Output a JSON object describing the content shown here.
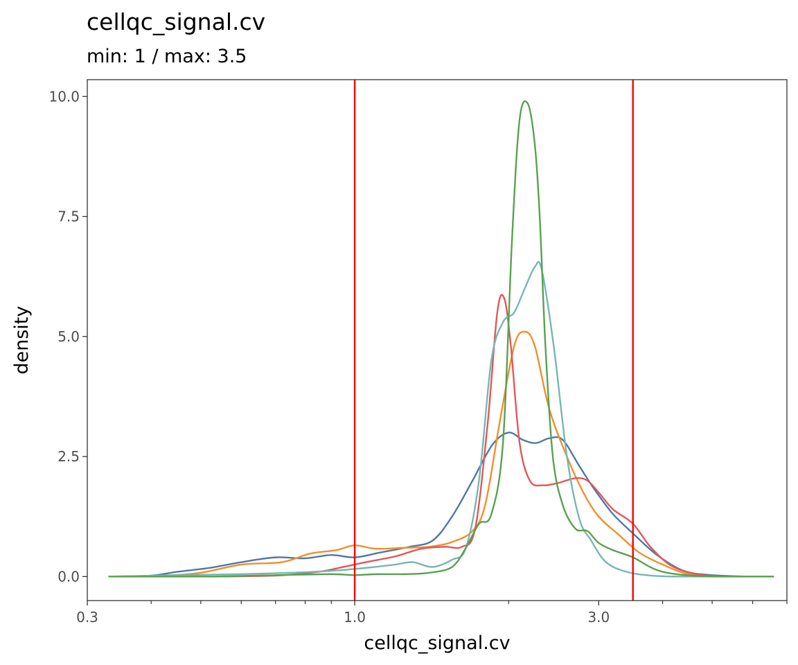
{
  "chart_data": {
    "type": "line",
    "title": "cellqc_signal.cv",
    "subtitle": "min: 1 / max: 3.5",
    "xlabel": "cellqc_signal.cv",
    "ylabel": "density",
    "x_scale": "log10",
    "xlim": [
      0.3,
      7.0
    ],
    "ylim": [
      -0.5,
      10.35
    ],
    "x_ticks": [
      {
        "value": 0.3,
        "label": "0.3"
      },
      {
        "value": 1.0,
        "label": "1.0"
      },
      {
        "value": 3.0,
        "label": "3.0"
      }
    ],
    "y_ticks": [
      {
        "value": 0.0,
        "label": "0.0"
      },
      {
        "value": 2.5,
        "label": "2.5"
      },
      {
        "value": 5.0,
        "label": "5.0"
      },
      {
        "value": 7.5,
        "label": "7.5"
      },
      {
        "value": 10.0,
        "label": "10.0"
      }
    ],
    "grid": false,
    "legend": "none",
    "vlines": [
      {
        "x": 1.0,
        "color": "#ff0000"
      },
      {
        "x": 3.5,
        "color": "#ff0000"
      }
    ],
    "series": [
      {
        "color": "#4e79a7",
        "x": [
          0.33,
          0.4,
          0.45,
          0.52,
          0.6,
          0.7,
          0.8,
          0.9,
          1.0,
          1.12,
          1.28,
          1.42,
          1.55,
          1.7,
          1.86,
          2.0,
          2.13,
          2.26,
          2.4,
          2.55,
          2.75,
          2.95,
          3.2,
          3.5,
          3.9,
          4.4,
          5.0,
          6.0,
          6.6
        ],
        "y": [
          0.0,
          0.02,
          0.1,
          0.18,
          0.3,
          0.4,
          0.38,
          0.45,
          0.4,
          0.5,
          0.62,
          0.75,
          1.25,
          2.0,
          2.75,
          3.0,
          2.85,
          2.78,
          2.88,
          2.85,
          2.3,
          1.8,
          1.3,
          0.9,
          0.45,
          0.12,
          0.03,
          0.0,
          0.0
        ]
      },
      {
        "color": "#f28e2b",
        "x": [
          0.33,
          0.42,
          0.5,
          0.6,
          0.72,
          0.82,
          0.92,
          1.0,
          1.1,
          1.25,
          1.4,
          1.55,
          1.7,
          1.8,
          1.92,
          2.05,
          2.15,
          2.25,
          2.4,
          2.6,
          2.8,
          3.0,
          3.3,
          3.6,
          4.0,
          4.5,
          5.2,
          6.0,
          6.6
        ],
        "y": [
          0.0,
          0.02,
          0.08,
          0.25,
          0.3,
          0.48,
          0.55,
          0.65,
          0.58,
          0.6,
          0.62,
          0.72,
          0.95,
          1.5,
          3.2,
          4.8,
          5.1,
          4.8,
          3.5,
          2.5,
          1.75,
          1.25,
          0.85,
          0.5,
          0.25,
          0.05,
          0.0,
          0.0,
          0.0
        ]
      },
      {
        "color": "#e15759",
        "x": [
          0.33,
          0.5,
          0.7,
          0.85,
          0.95,
          1.05,
          1.2,
          1.35,
          1.5,
          1.62,
          1.72,
          1.82,
          1.9,
          1.96,
          2.02,
          2.1,
          2.2,
          2.33,
          2.5,
          2.7,
          2.85,
          3.0,
          3.2,
          3.5,
          3.8,
          4.2,
          4.8,
          5.5,
          6.6
        ],
        "y": [
          0.0,
          0.0,
          0.02,
          0.1,
          0.2,
          0.3,
          0.42,
          0.58,
          0.62,
          0.62,
          1.0,
          3.2,
          5.5,
          5.8,
          4.8,
          2.8,
          2.0,
          1.9,
          1.95,
          2.05,
          2.0,
          1.75,
          1.4,
          1.1,
          0.6,
          0.2,
          0.03,
          0.0,
          0.0
        ]
      },
      {
        "color": "#76b7b2",
        "x": [
          0.33,
          0.45,
          0.6,
          0.75,
          0.9,
          1.05,
          1.2,
          1.3,
          1.42,
          1.55,
          1.65,
          1.75,
          1.85,
          1.95,
          2.05,
          2.15,
          2.25,
          2.32,
          2.45,
          2.6,
          2.75,
          2.9,
          3.1,
          3.4,
          3.8,
          4.3,
          5.0,
          6.0,
          6.6
        ],
        "y": [
          0.0,
          0.03,
          0.05,
          0.08,
          0.12,
          0.18,
          0.25,
          0.3,
          0.2,
          0.35,
          0.6,
          2.0,
          4.5,
          5.3,
          5.5,
          6.0,
          6.45,
          6.4,
          4.8,
          2.5,
          1.2,
          0.75,
          0.3,
          0.1,
          0.02,
          0.0,
          0.0,
          0.0,
          0.0
        ]
      },
      {
        "color": "#59a14f",
        "x": [
          0.33,
          0.5,
          0.7,
          0.9,
          1.0,
          1.1,
          1.25,
          1.4,
          1.55,
          1.65,
          1.75,
          1.85,
          1.95,
          2.03,
          2.1,
          2.18,
          2.25,
          2.3,
          2.36,
          2.44,
          2.55,
          2.7,
          2.85,
          3.0,
          3.2,
          3.5,
          4.0,
          5.0,
          6.6
        ],
        "y": [
          0.0,
          0.0,
          0.03,
          0.05,
          0.03,
          0.05,
          0.05,
          0.08,
          0.2,
          0.6,
          1.1,
          1.3,
          2.8,
          7.0,
          9.5,
          9.85,
          9.0,
          7.5,
          4.8,
          2.5,
          1.5,
          1.0,
          0.95,
          0.7,
          0.55,
          0.4,
          0.1,
          0.0,
          0.0
        ]
      }
    ]
  }
}
